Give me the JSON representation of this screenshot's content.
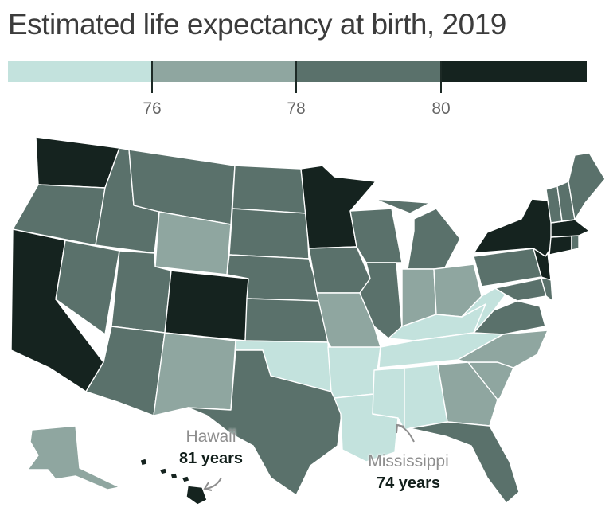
{
  "title": "Estimated life expectancy at birth, 2019",
  "legend": {
    "bins": [
      {
        "label": "below 76",
        "color": "#c3e2dd"
      },
      {
        "label": "76 to 78",
        "color": "#8fa6a0"
      },
      {
        "label": "78 to 80",
        "color": "#5a716b"
      },
      {
        "label": "80 and above",
        "color": "#15231f"
      }
    ],
    "ticks": [
      "76",
      "78",
      "80"
    ]
  },
  "chart_data": {
    "type": "choropleth",
    "title": "Estimated life expectancy at birth, 2019",
    "unit": "years",
    "bins": [
      [
        null,
        76
      ],
      [
        76,
        78
      ],
      [
        78,
        80
      ],
      [
        80,
        null
      ]
    ],
    "state_bins": {
      "WA": 3,
      "OR": 2,
      "CA": 3,
      "NV": 2,
      "ID": 2,
      "MT": 2,
      "WY": 1,
      "UT": 2,
      "AZ": 2,
      "CO": 3,
      "NM": 1,
      "ND": 2,
      "SD": 2,
      "NE": 2,
      "KS": 2,
      "OK": 0,
      "TX": 2,
      "MN": 3,
      "IA": 2,
      "MO": 1,
      "AR": 0,
      "LA": 0,
      "WI": 2,
      "IL": 2,
      "MI": 2,
      "IN": 1,
      "OH": 1,
      "KY": 0,
      "TN": 0,
      "MS": 0,
      "AL": 0,
      "GA": 1,
      "FL": 2,
      "SC": 1,
      "NC": 1,
      "VA": 2,
      "WV": 0,
      "PA": 2,
      "NY": 3,
      "VT": 2,
      "NH": 2,
      "ME": 2,
      "MA": 3,
      "RI": 2,
      "CT": 3,
      "NJ": 3,
      "DE": 2,
      "MD": 2,
      "AK": 1,
      "HI": 3
    },
    "annotations": [
      {
        "state": "Hawaii",
        "value": "81 years"
      },
      {
        "state": "Mississippi",
        "value": "74 years"
      }
    ]
  },
  "annotations": {
    "hawaii": {
      "name": "Hawaii",
      "value": "81 years"
    },
    "mississippi": {
      "name": "Mississippi",
      "value": "74 years"
    }
  }
}
